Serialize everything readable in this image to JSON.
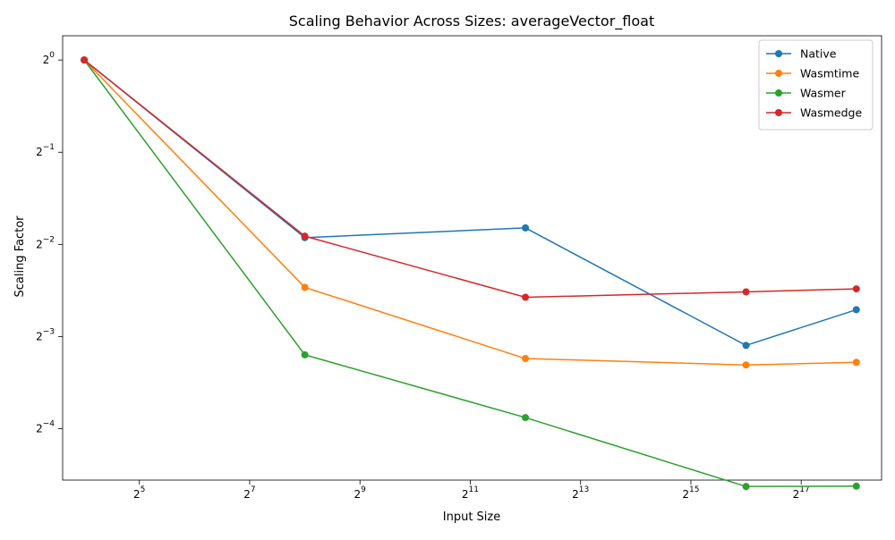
{
  "chart_data": {
    "type": "line",
    "title": "Scaling Behavior Across Sizes: averageVector_float",
    "xlabel": "Input Size",
    "ylabel": "Scaling Factor",
    "x_scale": "log2",
    "y_scale": "log2",
    "x": [
      16,
      256,
      4096,
      65536,
      262144
    ],
    "xlim": [
      12.2,
      360000
    ],
    "ylim": [
      0.0425,
      1.2
    ],
    "xticks": [
      {
        "value": 32,
        "base": "2",
        "exp": "5"
      },
      {
        "value": 128,
        "base": "2",
        "exp": "7"
      },
      {
        "value": 512,
        "base": "2",
        "exp": "9"
      },
      {
        "value": 2048,
        "base": "2",
        "exp": "11"
      },
      {
        "value": 8192,
        "base": "2",
        "exp": "13"
      },
      {
        "value": 32768,
        "base": "2",
        "exp": "15"
      },
      {
        "value": 131072,
        "base": "2",
        "exp": "17"
      }
    ],
    "yticks": [
      {
        "value": 1,
        "base": "2",
        "exp": "0"
      },
      {
        "value": 0.5,
        "base": "2",
        "exp": "−1"
      },
      {
        "value": 0.25,
        "base": "2",
        "exp": "−2"
      },
      {
        "value": 0.125,
        "base": "2",
        "exp": "−3"
      },
      {
        "value": 0.0625,
        "base": "2",
        "exp": "−4"
      }
    ],
    "series": [
      {
        "name": "Native",
        "color": "#1f77b4",
        "values": [
          1.0,
          0.263,
          0.283,
          0.117,
          0.153
        ]
      },
      {
        "name": "Wasmtime",
        "color": "#ff7f0e",
        "values": [
          1.0,
          0.181,
          0.106,
          0.101,
          0.103
        ]
      },
      {
        "name": "Wasmer",
        "color": "#2ca02c",
        "values": [
          1.0,
          0.109,
          0.068,
          0.0405,
          0.0406
        ]
      },
      {
        "name": "Wasmedge",
        "color": "#d62728",
        "values": [
          1.0,
          0.266,
          0.168,
          0.175,
          0.179
        ]
      }
    ],
    "legend": {
      "position": "top-right"
    },
    "grid": false
  }
}
